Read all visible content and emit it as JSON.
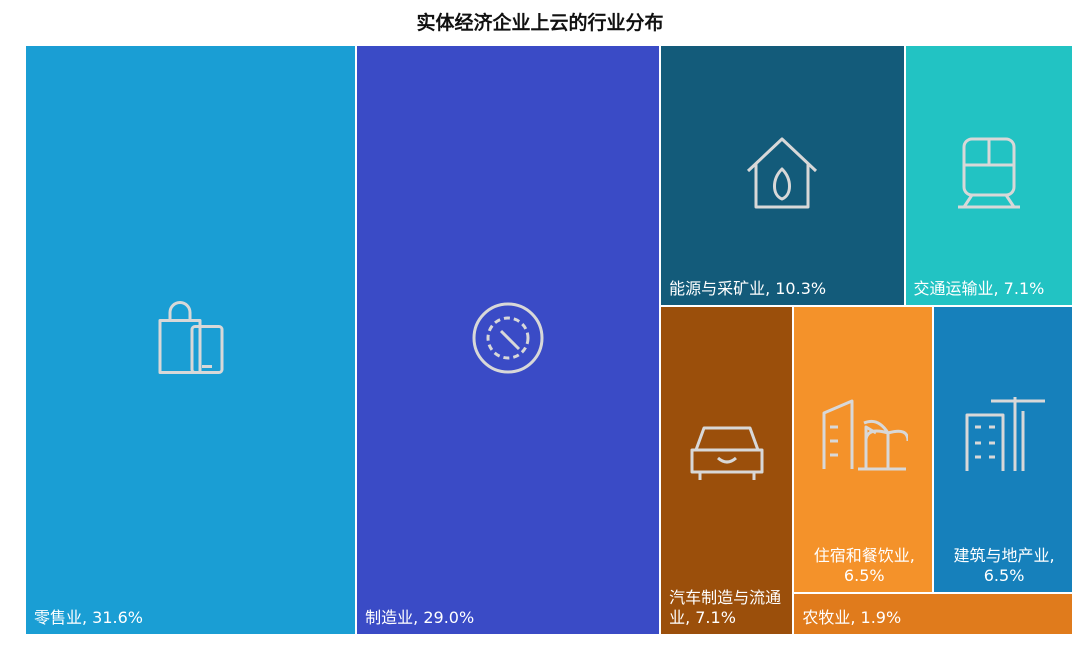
{
  "chart_data": {
    "type": "treemap",
    "title": "实体经济企业上云的行业分布",
    "value_labels": [
      "零售业, 31.6%",
      "制造业, 29.0%",
      "能源与采矿业, 10.3%",
      "交通运输业, 7.1%",
      "汽车制造与流通业, 7.1%",
      "住宿和餐饮业, 6.5%",
      "建筑与地产业, 6.5%",
      "农牧业, 1.9%"
    ],
    "values": [
      31.6,
      29.0,
      10.3,
      7.1,
      7.1,
      6.5,
      6.5,
      1.9
    ],
    "colors": [
      "#1a9ed4",
      "#3a4bc6",
      "#135b7a",
      "#22c3c3",
      "#9b4f0b",
      "#f4922a",
      "#1680bb",
      "#e07b1c"
    ]
  }
}
